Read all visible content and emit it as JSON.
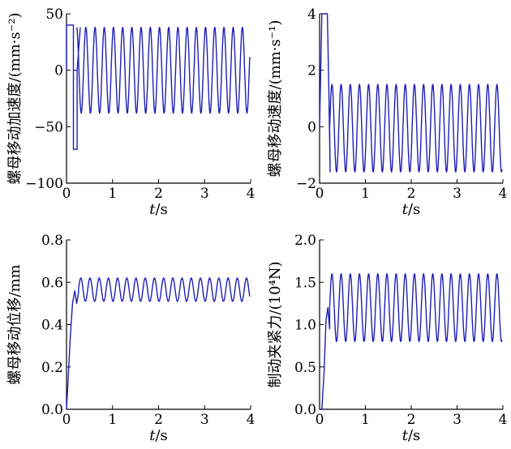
{
  "colors": {
    "line": "#1f1fb8",
    "axis": "#000000"
  },
  "chart_data": [
    {
      "type": "line",
      "ylabel": "螺母移动加速度/(mm·s⁻²)",
      "xlabel_var": "t",
      "xlabel_unit": "/s",
      "xlim": [
        0,
        4
      ],
      "ylim": [
        -100,
        50
      ],
      "xticks": [
        0,
        1,
        2,
        3,
        4
      ],
      "yticks": [
        -100,
        -50,
        0,
        50
      ],
      "xtick_labels": [
        "0",
        "1",
        "2",
        "3",
        "4"
      ],
      "ytick_labels": [
        "−100",
        "−50",
        "0",
        "50"
      ],
      "series": [
        {
          "x": [
            0.0,
            0.0,
            0.15,
            0.15,
            0.22
          ],
          "y": [
            0,
            40,
            40,
            0,
            0
          ]
        },
        {
          "x": [
            0.15,
            0.15,
            0.23,
            0.23,
            0.3
          ],
          "y": [
            0,
            -70,
            -70,
            0,
            38
          ]
        }
      ],
      "oscillation": {
        "x_start": 0.22,
        "x_end": 3.98,
        "center": 0,
        "amplitude": 38,
        "period": 0.2
      }
    },
    {
      "type": "line",
      "ylabel": "螺母移动速度/(mm·s⁻¹)",
      "xlabel_var": "t",
      "xlabel_unit": "/s",
      "xlim": [
        0,
        4
      ],
      "ylim": [
        -2,
        4
      ],
      "xticks": [
        0,
        1,
        2,
        3,
        4
      ],
      "yticks": [
        -2,
        0,
        2,
        4
      ],
      "xtick_labels": [
        "0",
        "1",
        "2",
        "3",
        "4"
      ],
      "ytick_labels": [
        "−2",
        "0",
        "2",
        "4"
      ],
      "series": [
        {
          "x": [
            0.0,
            0.05,
            0.08,
            0.15,
            0.17,
            0.2,
            0.23
          ],
          "y": [
            0,
            4,
            4,
            4,
            4,
            1.5,
            -1.6
          ]
        }
      ],
      "oscillation": {
        "x_start": 0.22,
        "x_end": 3.98,
        "center": -0.05,
        "amplitude": 1.55,
        "period": 0.2
      }
    },
    {
      "type": "line",
      "ylabel": "螺母移动位移/mm",
      "xlabel_var": "t",
      "xlabel_unit": "/s",
      "xlim": [
        0,
        4
      ],
      "ylim": [
        0,
        0.8
      ],
      "xticks": [
        0,
        1,
        2,
        3,
        4
      ],
      "yticks": [
        0,
        0.2,
        0.4,
        0.6,
        0.8
      ],
      "xtick_labels": [
        "0",
        "1",
        "2",
        "3",
        "4"
      ],
      "ytick_labels": [
        "0.0",
        "0.2",
        "0.4",
        "0.6",
        "0.8"
      ],
      "series": [
        {
          "x": [
            0.0,
            0.03,
            0.08,
            0.13,
            0.18,
            0.22,
            0.26
          ],
          "y": [
            0.0,
            0.12,
            0.33,
            0.5,
            0.56,
            0.5,
            0.55
          ]
        }
      ],
      "oscillation": {
        "x_start": 0.26,
        "x_end": 3.98,
        "center": 0.565,
        "amplitude": 0.055,
        "period": 0.2
      }
    },
    {
      "type": "line",
      "ylabel": "制动夹紧力/(10⁴N)",
      "xlabel_var": "t",
      "xlabel_unit": "/s",
      "xlim": [
        0,
        4
      ],
      "ylim": [
        0,
        2.0
      ],
      "xticks": [
        0,
        1,
        2,
        3,
        4
      ],
      "yticks": [
        0,
        0.5,
        1.0,
        1.5,
        2.0
      ],
      "xtick_labels": [
        "0",
        "1",
        "2",
        "3",
        "4"
      ],
      "ytick_labels": [
        "0.0",
        "0.5",
        "1.0",
        "1.5",
        "2.0"
      ],
      "series": [
        {
          "x": [
            0.0,
            0.05,
            0.1,
            0.14,
            0.18,
            0.22
          ],
          "y": [
            0,
            0,
            0.45,
            1.05,
            1.2,
            0.95
          ]
        }
      ],
      "oscillation": {
        "x_start": 0.22,
        "x_end": 3.98,
        "center": 1.2,
        "amplitude": 0.4,
        "period": 0.2
      }
    }
  ]
}
